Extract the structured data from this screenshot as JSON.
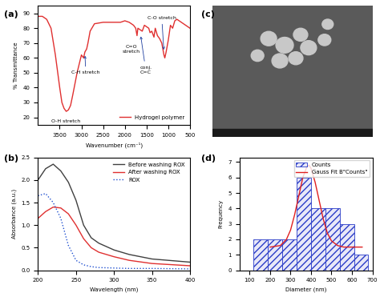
{
  "chart_data": [
    {
      "panel": "(a)",
      "type": "line",
      "x_label": "Wavenumber (cm⁻¹)",
      "y_label": "% Transmittance",
      "xlim": [
        4000,
        500
      ],
      "xticks": [
        3500,
        3000,
        2500,
        2000,
        1500,
        1000,
        500
      ],
      "ylim": [
        15,
        95
      ],
      "yticks": [
        20,
        30,
        40,
        50,
        60,
        70,
        80,
        90
      ],
      "legend": "lower right",
      "grid": false,
      "x": [
        4000,
        3900,
        3800,
        3700,
        3600,
        3500,
        3450,
        3400,
        3350,
        3300,
        3250,
        3200,
        3100,
        3000,
        2950,
        2920,
        2880,
        2850,
        2800,
        2700,
        2500,
        2300,
        2100,
        2000,
        1900,
        1800,
        1750,
        1720,
        1700,
        1650,
        1600,
        1550,
        1500,
        1450,
        1420,
        1380,
        1330,
        1300,
        1250,
        1200,
        1150,
        1100,
        1080,
        1050,
        1000,
        950,
        900,
        850,
        800,
        700,
        600,
        500
      ],
      "series": [
        {
          "name": "Hydrogel polymer",
          "color": "#e03030",
          "line_style": "solid",
          "values": [
            88,
            88,
            86,
            80,
            62,
            40,
            30,
            26,
            24,
            25,
            28,
            35,
            50,
            62,
            60,
            64,
            66,
            70,
            78,
            83,
            84,
            84,
            84,
            85,
            84,
            82,
            80,
            75,
            80,
            79,
            78,
            82,
            81,
            80,
            77,
            78,
            74,
            80,
            75,
            73,
            70,
            62,
            60,
            64,
            72,
            82,
            80,
            85,
            86,
            84,
            82,
            80
          ]
        }
      ],
      "annotations": [
        {
          "text": "O-H stretch"
        },
        {
          "text": "C-H stretch"
        },
        {
          "text": "C=O\nstretch"
        },
        {
          "text": "conj.\nC=C"
        },
        {
          "text": "C-O stretch"
        }
      ]
    },
    {
      "panel": "(b)",
      "type": "line",
      "x_label": "Wavelength (nm)",
      "y_label": "Absorbance (a.u.)",
      "xlim": [
        200,
        400
      ],
      "xticks": [
        200,
        250,
        300,
        350,
        400
      ],
      "ylim": [
        0,
        2.5
      ],
      "yticks": [
        {
          "value": 0,
          "label": "0.0"
        },
        0.5,
        {
          "value": 1,
          "label": "1.0"
        },
        1.5,
        {
          "value": 2,
          "label": "2.0"
        },
        2.5
      ],
      "legend": "upper right",
      "grid": false,
      "x": [
        200,
        210,
        220,
        230,
        240,
        250,
        260,
        270,
        280,
        300,
        320,
        350,
        400
      ],
      "series": [
        {
          "name": "Before washing ROX",
          "color": "#404040",
          "line_style": "solid",
          "values": [
            2.0,
            2.25,
            2.35,
            2.2,
            1.95,
            1.55,
            1.0,
            0.72,
            0.6,
            0.45,
            0.35,
            0.25,
            0.18
          ]
        },
        {
          "name": "After washing ROX",
          "color": "#e03030",
          "line_style": "solid",
          "values": [
            1.15,
            1.3,
            1.4,
            1.38,
            1.25,
            1.0,
            0.7,
            0.5,
            0.4,
            0.3,
            0.22,
            0.15,
            0.1
          ]
        },
        {
          "name": "ROX",
          "color": "#1f4fd0",
          "line_style": "dotted",
          "values": [
            1.65,
            1.7,
            1.5,
            1.15,
            0.55,
            0.22,
            0.12,
            0.08,
            0.06,
            0.05,
            0.04,
            0.04,
            0.03
          ]
        }
      ]
    },
    {
      "panel": "(c)",
      "type": "image"
    },
    {
      "panel": "(d)",
      "type": "histogram",
      "x_label": "Diameter (nm)",
      "y_label": "Frequency",
      "xlim": [
        50,
        700
      ],
      "xticks": [
        100,
        200,
        300,
        400,
        500,
        600,
        700
      ],
      "ylim": [
        0,
        7.3
      ],
      "yticks": [
        0,
        1,
        2,
        3,
        4,
        5,
        6,
        7
      ],
      "legend": "upper right",
      "grid": false,
      "name": "Counts",
      "color": "#2a3cc8",
      "bins": [
        120,
        190,
        260,
        330,
        400,
        470,
        540,
        610,
        680
      ],
      "counts": [
        2,
        2,
        2,
        6,
        4,
        4,
        3,
        1
      ],
      "series": [
        {
          "name": "Gauss Fit B\"Counts\"",
          "color": "#e02020",
          "line_style": "solid",
          "x": [
            200,
            250,
            280,
            300,
            320,
            340,
            360,
            380,
            390,
            400,
            420,
            440,
            460,
            480,
            500,
            530,
            560,
            600,
            650
          ],
          "values": [
            1.5,
            1.6,
            2.0,
            2.6,
            3.6,
            4.8,
            6.0,
            6.7,
            6.8,
            6.6,
            5.7,
            4.5,
            3.3,
            2.4,
            1.9,
            1.6,
            1.5,
            1.5,
            1.5
          ]
        }
      ]
    }
  ]
}
